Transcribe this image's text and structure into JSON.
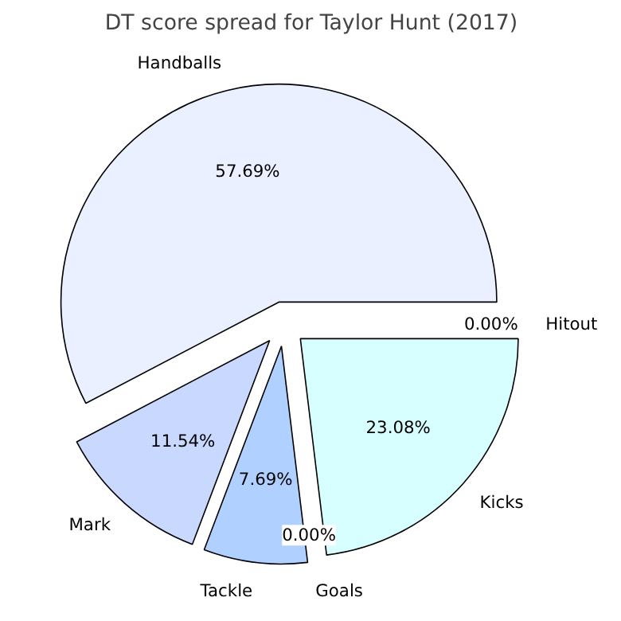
{
  "chart_data": {
    "type": "pie",
    "title": "DT score spread for Taylor Hunt (2017)",
    "categories": [
      "Handballs",
      "Mark",
      "Tackle",
      "Goals",
      "Kicks",
      "Hitout"
    ],
    "values": [
      57.69,
      11.54,
      7.69,
      0.0,
      23.08,
      0.0
    ],
    "colors": [
      "#eaf0ff",
      "#c8d8ff",
      "#b0d0ff",
      "#d8f0ff",
      "#d8ffff",
      "#e8f8ff"
    ],
    "value_labels": [
      "57.69%",
      "11.54%",
      "7.69%",
      "0.00%",
      "23.08%",
      "0.00%"
    ]
  }
}
